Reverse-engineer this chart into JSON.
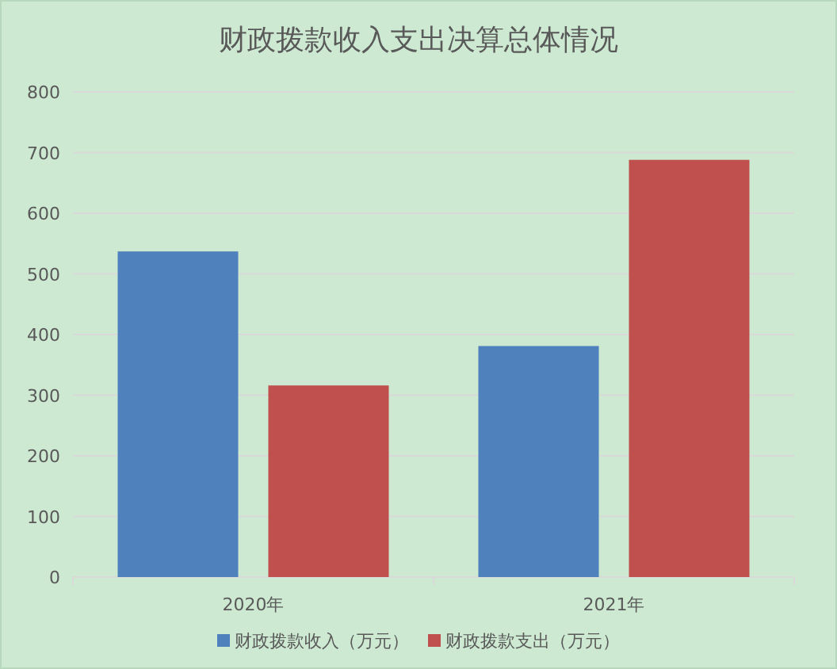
{
  "chart_data": {
    "type": "bar",
    "title": "财政拨款收入支出决算总体情况",
    "categories": [
      "2020年",
      "2021年"
    ],
    "series": [
      {
        "name": "财政拨款收入（万元）",
        "color": "#4f81bd",
        "values": [
          537,
          381
        ]
      },
      {
        "name": "财政拨款支出（万元）",
        "color": "#c0504d",
        "values": [
          316,
          688
        ]
      }
    ],
    "ylim": [
      0,
      800
    ],
    "yticks": [
      0,
      100,
      200,
      300,
      400,
      500,
      600,
      700,
      800
    ],
    "grid": "y",
    "legend": "bottom"
  }
}
